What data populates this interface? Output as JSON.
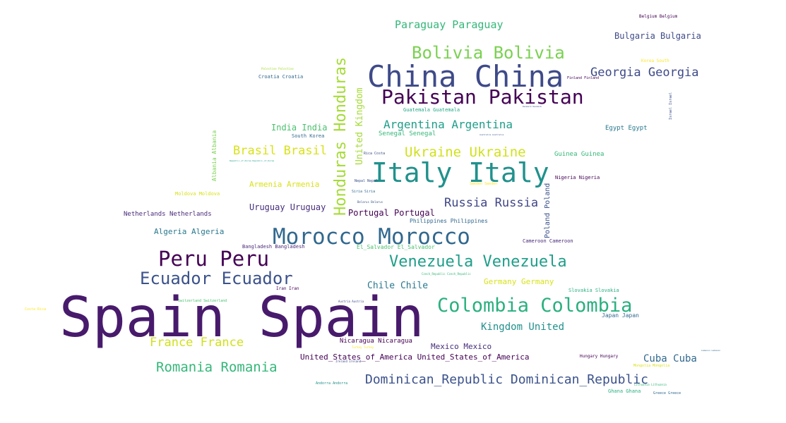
{
  "words": [
    {
      "text": "Spain Spain",
      "color": "#481a6c"
    },
    {
      "text": "China China",
      "color": "#3e4a89"
    },
    {
      "text": "Italy Italy",
      "color": "#21918c"
    },
    {
      "text": "Morocco Morocco",
      "color": "#31688e"
    },
    {
      "text": "Pakistan Pakistan",
      "color": "#440154"
    },
    {
      "text": "Colombia Colombia",
      "color": "#2ab07f"
    },
    {
      "text": "Peru Peru",
      "color": "#440154"
    },
    {
      "text": "Honduras Honduras",
      "color": "#a5db36"
    },
    {
      "text": "Bolivia Bolivia",
      "color": "#7ad151"
    },
    {
      "text": "Ecuador Ecuador",
      "color": "#3b528b"
    },
    {
      "text": "Venezuela Venezuela",
      "color": "#1f9e89"
    },
    {
      "text": "Dominican_Republic Dominican_Republic",
      "color": "#3b528b"
    },
    {
      "text": "Romania Romania",
      "color": "#35b779"
    },
    {
      "text": "Ukraine Ukraine",
      "color": "#d0e11c"
    },
    {
      "text": "Argentina Argentina",
      "color": "#1f9e89"
    },
    {
      "text": "Georgia Georgia",
      "color": "#3e4a89"
    },
    {
      "text": "Russia Russia",
      "color": "#404688"
    },
    {
      "text": "Brasil Brasil",
      "color": "#d8e219"
    },
    {
      "text": "France France",
      "color": "#d0e11c"
    },
    {
      "text": "Paraguay Paraguay",
      "color": "#35b779"
    },
    {
      "text": "Kingdom United",
      "color": "#21918c"
    },
    {
      "text": "Cuba Cuba",
      "color": "#31688e"
    },
    {
      "text": "Chile Chile",
      "color": "#2a788e"
    },
    {
      "text": "Bulgaria Bulgaria",
      "color": "#3e4a89"
    },
    {
      "text": "Uruguay Uruguay",
      "color": "#472d7b"
    },
    {
      "text": "United_States_of_America United_States_of_America",
      "color": "#440154"
    },
    {
      "text": "United Kingdom",
      "color": "#a5db36"
    },
    {
      "text": "India India",
      "color": "#4ac16d"
    },
    {
      "text": "Portugal Portugal",
      "color": "#440154"
    },
    {
      "text": "Armenia Armenia",
      "color": "#d8e219"
    },
    {
      "text": "Algeria Algeria",
      "color": "#2a788e"
    },
    {
      "text": "Mexico Mexico",
      "color": "#472d7b"
    },
    {
      "text": "Germany Germany",
      "color": "#d8e219"
    },
    {
      "text": "Netherlands Netherlands",
      "color": "#482878"
    },
    {
      "text": "Nicaragua Nicaragua",
      "color": "#440154"
    },
    {
      "text": "Poland Poland",
      "color": "#3b528b"
    },
    {
      "text": "Senegal Senegal",
      "color": "#35b779"
    },
    {
      "text": "Egypt Egypt",
      "color": "#2a788e"
    },
    {
      "text": "Guinea Guinea",
      "color": "#35b779"
    },
    {
      "text": "Albania Albania",
      "color": "#7ad151"
    },
    {
      "text": "Nigeria Nigeria",
      "color": "#440154"
    },
    {
      "text": "Bangladesh Bangladesh",
      "color": "#482878"
    },
    {
      "text": "El_Salvador El_Salvador",
      "color": "#4ac16d"
    },
    {
      "text": "Philippines Philippines",
      "color": "#31688e"
    },
    {
      "text": "Cameroon Cameroon",
      "color": "#482878"
    },
    {
      "text": "Slovakia Slovakia",
      "color": "#2ab07f"
    },
    {
      "text": "Japan Japan",
      "color": "#31688e"
    },
    {
      "text": "Moldova Moldova",
      "color": "#d8e219"
    },
    {
      "text": "Guatemala Guatemala",
      "color": "#22a884"
    },
    {
      "text": "Croatia Croatia",
      "color": "#31688e"
    },
    {
      "text": "South Korea",
      "color": "#31688e"
    },
    {
      "text": "Belgium Belgium",
      "color": "#440154"
    },
    {
      "text": "Korea South",
      "color": "#fde725"
    },
    {
      "text": "Hungary Hungary",
      "color": "#440154"
    },
    {
      "text": "Ghana Ghana",
      "color": "#2ab07f"
    },
    {
      "text": "Greece Greece",
      "color": "#31688e"
    },
    {
      "text": "Israel Israel",
      "color": "#3b528b"
    },
    {
      "text": "Iran Iran",
      "color": "#440154"
    },
    {
      "text": "Switzerland Switzerland",
      "color": "#4ac16d"
    },
    {
      "text": "Costa Rica",
      "color": "#fde725"
    },
    {
      "text": "Andorra Andorra",
      "color": "#21918c"
    },
    {
      "text": "Nepal Nepal",
      "color": "#3b528b"
    },
    {
      "text": "Siria Siria",
      "color": "#31688e"
    },
    {
      "text": "Belarus Belarus",
      "color": "#3b528b"
    },
    {
      "text": "Rica Costa",
      "color": "#3e4a89"
    },
    {
      "text": "Sweden Sweden",
      "color": "#fde725"
    },
    {
      "text": "Finland Finland",
      "color": "#440154"
    },
    {
      "text": "Mongolia Mongolia",
      "color": "#d8e219"
    },
    {
      "text": "Lithuania Lithuania",
      "color": "#35b779"
    },
    {
      "text": "Turkey Turkey",
      "color": "#fde725"
    },
    {
      "text": "Ireland Ireland",
      "color": "#3e4a89"
    },
    {
      "text": "Austria Austria",
      "color": "#3e4a89"
    },
    {
      "text": "Czech_Republic Czech_Republic",
      "color": "#35b779"
    },
    {
      "text": "Palestine Palestine",
      "color": "#a5db36"
    },
    {
      "text": "Republic_of_Korea Republic_of_Korea",
      "color": "#1f9e89"
    },
    {
      "text": "Denmark Denmark",
      "color": "#3b528b"
    },
    {
      "text": "Australia Australia",
      "color": "#3b528b"
    },
    {
      "text": "Lebanon Lebanon",
      "color": "#31688e"
    }
  ]
}
